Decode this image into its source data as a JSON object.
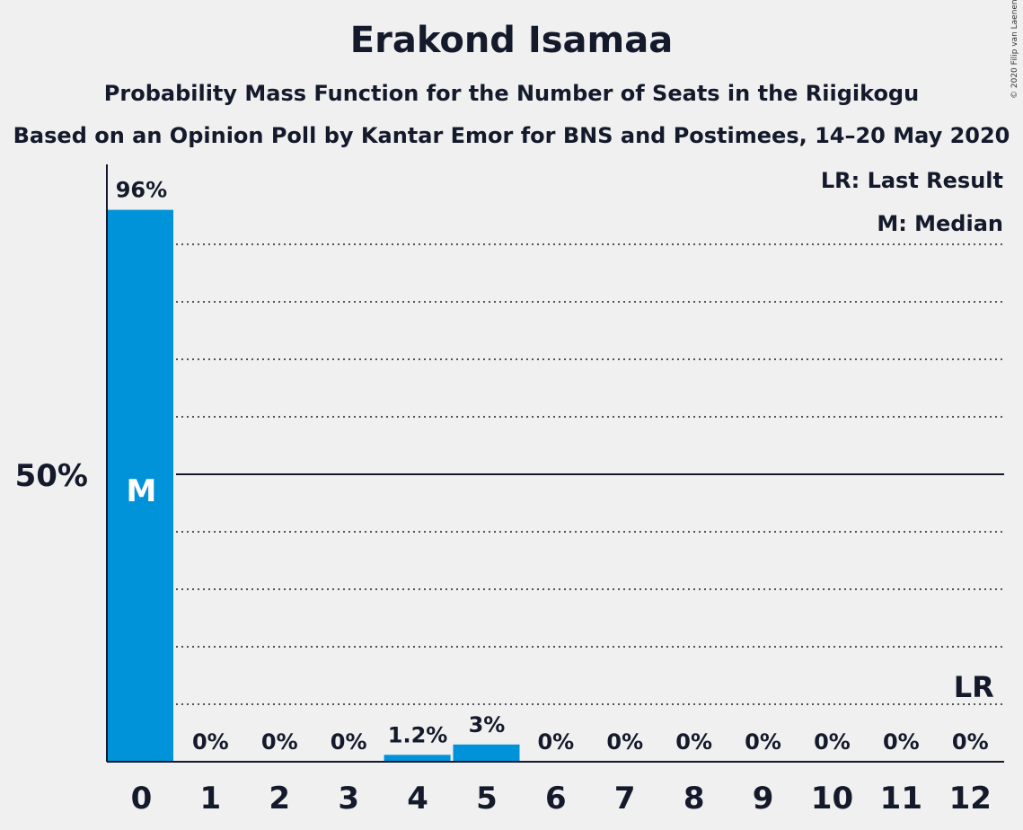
{
  "title": "Erakond Isamaa",
  "subtitle": "Probability Mass Function for the Number of Seats in the Riigikogu",
  "subtitle2": "Based on an Opinion Poll by Kantar Emor for BNS and Postimees, 14–20 May 2020",
  "copyright": "© 2020 Filip van Laenen",
  "legend": {
    "last_result": "LR: Last Result",
    "median": "M: Median"
  },
  "colors": {
    "bar": "#0093d9",
    "background": "#f0f0f0",
    "text": "#141a2b"
  },
  "chart_data": {
    "type": "bar",
    "title": "Erakond Isamaa",
    "categories": [
      "0",
      "1",
      "2",
      "3",
      "4",
      "5",
      "6",
      "7",
      "8",
      "9",
      "10",
      "11",
      "12"
    ],
    "values": [
      96,
      0,
      0,
      0,
      1.2,
      3,
      0,
      0,
      0,
      0,
      0,
      0,
      0
    ],
    "data_labels": [
      "96%",
      "0%",
      "0%",
      "0%",
      "1.2%",
      "3%",
      "0%",
      "0%",
      "0%",
      "0%",
      "0%",
      "0%",
      "0%"
    ],
    "ylim": [
      0,
      100
    ],
    "y_tick_labels": [
      "50%"
    ],
    "y_tick_values": [
      50
    ],
    "gridlines": [
      10,
      20,
      30,
      40,
      60,
      70,
      80,
      90
    ],
    "grid": true,
    "median_category": "0",
    "median_label": "M",
    "last_result_category": "12",
    "last_result_label": "LR",
    "legend_position": "top-right"
  }
}
